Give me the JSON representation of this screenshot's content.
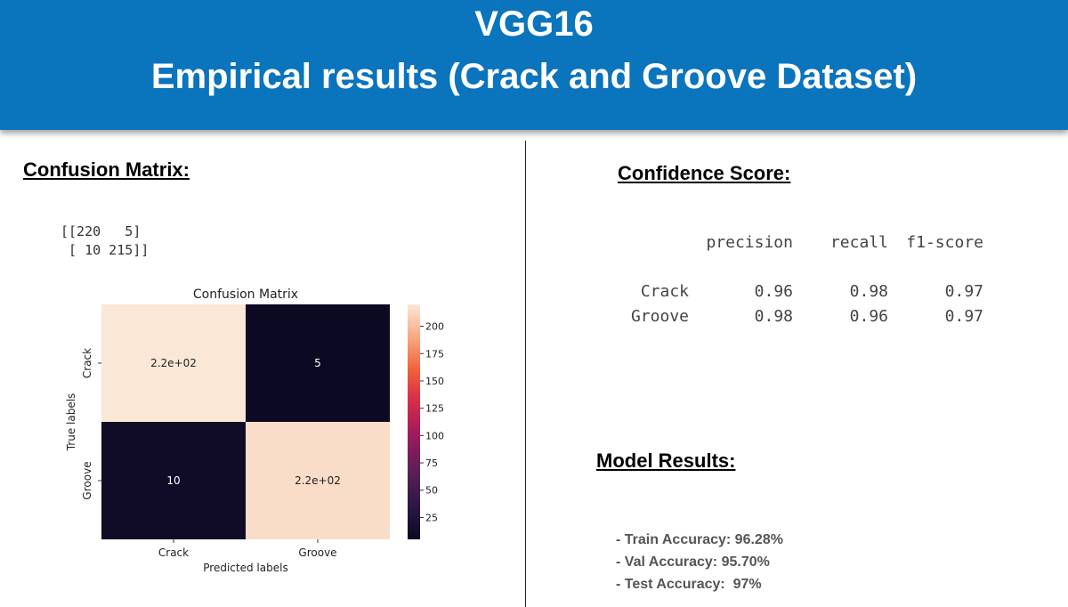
{
  "header": {
    "title": "VGG16",
    "subtitle": "Empirical results (Crack and Groove Dataset)"
  },
  "confusion_section": {
    "heading": "Confusion Matrix:",
    "raw_lines": [
      "[[220   5]",
      " [ 10 215]]"
    ]
  },
  "confidence_section": {
    "heading": "Confidence Score:",
    "columns": [
      "precision",
      "recall",
      "f1-score"
    ],
    "rows": [
      {
        "label": "Crack",
        "precision": "0.96",
        "recall": "0.98",
        "f1": "0.97"
      },
      {
        "label": "Groove",
        "precision": "0.98",
        "recall": "0.96",
        "f1": "0.97"
      }
    ]
  },
  "model_results": {
    "heading": "Model Results:",
    "items": [
      "- Train Accuracy: 96.28%",
      "- Val Accuracy: 95.70%",
      "- Test Accuracy:  97%"
    ]
  },
  "chart_data": {
    "type": "heatmap",
    "title": "Confusion Matrix",
    "xlabel": "Predicted labels",
    "ylabel": "True labels",
    "x_categories": [
      "Crack",
      "Groove"
    ],
    "y_categories": [
      "Crack",
      "Groove"
    ],
    "values": [
      [
        220,
        5
      ],
      [
        10,
        215
      ]
    ],
    "annotations": [
      [
        "2.2e+02",
        "5"
      ],
      [
        "10",
        "2.2e+02"
      ]
    ],
    "colorbar": {
      "min": 5,
      "max": 220,
      "ticks": [
        25,
        50,
        75,
        100,
        125,
        150,
        175,
        200
      ],
      "colormap": "rocket",
      "low_color": "#0b0a22",
      "high_color": "#fae7d6"
    }
  }
}
